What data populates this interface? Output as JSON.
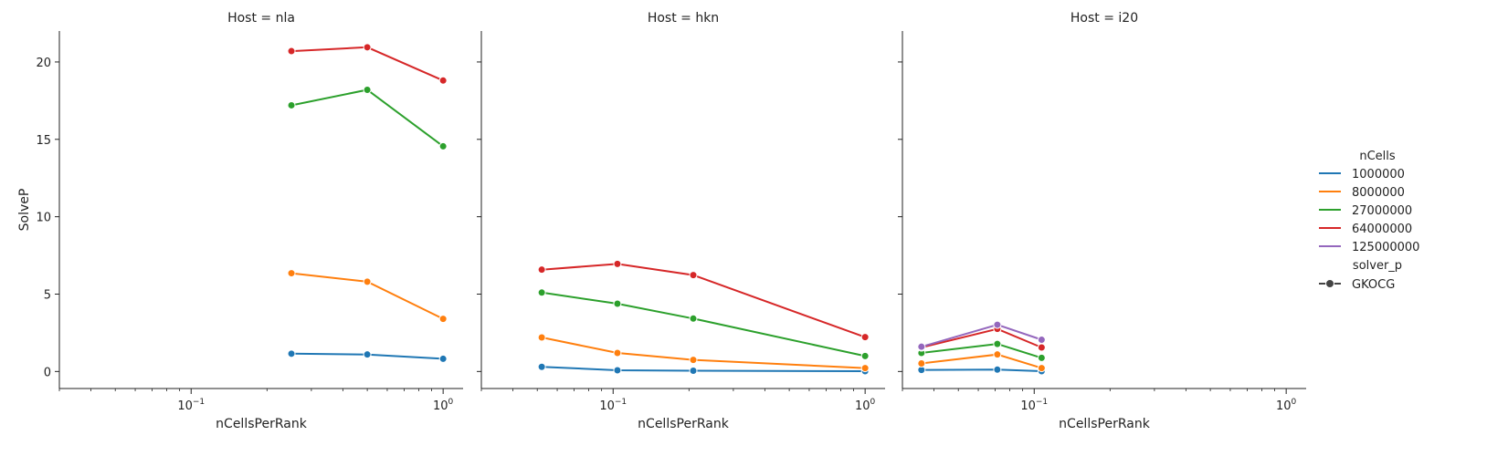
{
  "chart_data": {
    "type": "line",
    "xscale": "log",
    "xlim": [
      0.03,
      1.2
    ],
    "ylim": [
      -1.1,
      22
    ],
    "xlabel": "nCellsPerRank",
    "ylabel": "SolveP",
    "x_ticks": [
      {
        "value": 0.1,
        "label": "10",
        "exp": "−1"
      },
      {
        "value": 1,
        "label": "10",
        "exp": "0"
      }
    ],
    "y_ticks": [
      0,
      5,
      10,
      15,
      20
    ],
    "colors": {
      "1000000": "#1f77b4",
      "8000000": "#ff7f0e",
      "27000000": "#2ca02c",
      "64000000": "#d62728",
      "125000000": "#9467bd"
    },
    "legend": {
      "placement": "right",
      "hue_title": "nCells",
      "hue_entries": [
        "1000000",
        "8000000",
        "27000000",
        "64000000",
        "125000000"
      ],
      "style_title": "solver_p",
      "style_entries": [
        "GKOCG"
      ]
    },
    "panels": [
      {
        "title": "Host = nla",
        "series": [
          {
            "name": "1000000",
            "x": [
              0.25,
              0.5,
              1.0
            ],
            "y": [
              1.15,
              1.1,
              0.82
            ]
          },
          {
            "name": "8000000",
            "x": [
              0.25,
              0.5,
              1.0
            ],
            "y": [
              6.35,
              5.8,
              3.4
            ]
          },
          {
            "name": "27000000",
            "x": [
              0.25,
              0.5,
              1.0
            ],
            "y": [
              17.2,
              18.2,
              14.55
            ]
          },
          {
            "name": "64000000",
            "x": [
              0.25,
              0.5,
              1.0
            ],
            "y": [
              20.7,
              20.95,
              18.8
            ]
          }
        ]
      },
      {
        "title": "Host = hkn",
        "series": [
          {
            "name": "1000000",
            "x": [
              0.0521,
              0.104,
              0.208,
              1.0
            ],
            "y": [
              0.3,
              0.08,
              0.05,
              0.02
            ]
          },
          {
            "name": "8000000",
            "x": [
              0.0521,
              0.104,
              0.208,
              1.0
            ],
            "y": [
              2.2,
              1.2,
              0.75,
              0.22
            ]
          },
          {
            "name": "27000000",
            "x": [
              0.0521,
              0.104,
              0.208,
              1.0
            ],
            "y": [
              5.1,
              4.38,
              3.42,
              1.0
            ]
          },
          {
            "name": "64000000",
            "x": [
              0.0521,
              0.104,
              0.208,
              1.0
            ],
            "y": [
              6.58,
              6.95,
              6.23,
              2.22
            ]
          }
        ]
      },
      {
        "title": "Host = i20",
        "series": [
          {
            "name": "1000000",
            "x": [
              0.0357,
              0.0714,
              0.107
            ],
            "y": [
              0.1,
              0.12,
              0.02
            ]
          },
          {
            "name": "8000000",
            "x": [
              0.0357,
              0.0714,
              0.107
            ],
            "y": [
              0.52,
              1.1,
              0.22
            ]
          },
          {
            "name": "27000000",
            "x": [
              0.0357,
              0.0714,
              0.107
            ],
            "y": [
              1.2,
              1.78,
              0.88
            ]
          },
          {
            "name": "64000000",
            "x": [
              0.0357,
              0.0714,
              0.107
            ],
            "y": [
              1.55,
              2.75,
              1.55
            ]
          },
          {
            "name": "125000000",
            "x": [
              0.0357,
              0.0714,
              0.107
            ],
            "y": [
              1.6,
              3.02,
              2.05
            ]
          }
        ]
      }
    ]
  }
}
